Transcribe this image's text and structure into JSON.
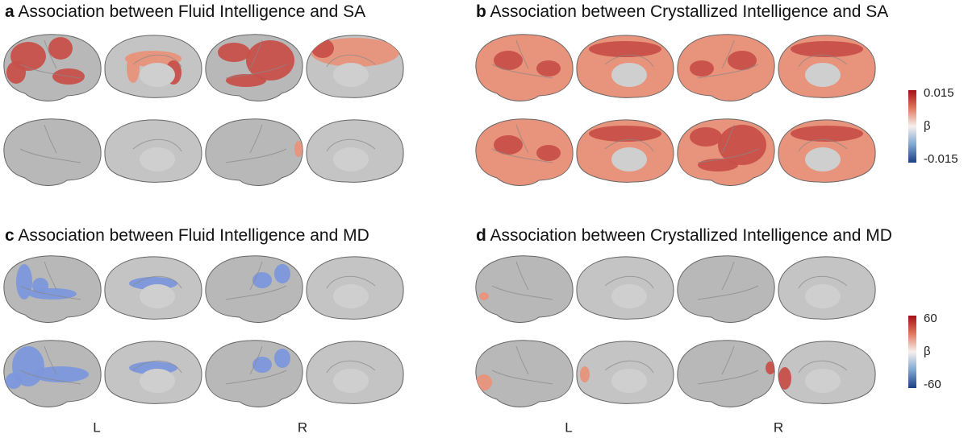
{
  "panels": [
    {
      "letter": "a",
      "title": "Association between Fluid Intelligence and SA"
    },
    {
      "letter": "b",
      "title": "Association between Crystallized Intelligence and SA"
    },
    {
      "letter": "c",
      "title": "Association between Fluid Intelligence and MD"
    },
    {
      "letter": "d",
      "title": "Association between Crystallized Intelligence and MD"
    }
  ],
  "colorbars": [
    {
      "max": "0.015",
      "symbol": "β",
      "min": "-0.015"
    },
    {
      "max": "60",
      "symbol": "β",
      "min": "-60"
    }
  ],
  "hemisphere_labels": [
    "L",
    "R",
    "L",
    "R"
  ]
}
